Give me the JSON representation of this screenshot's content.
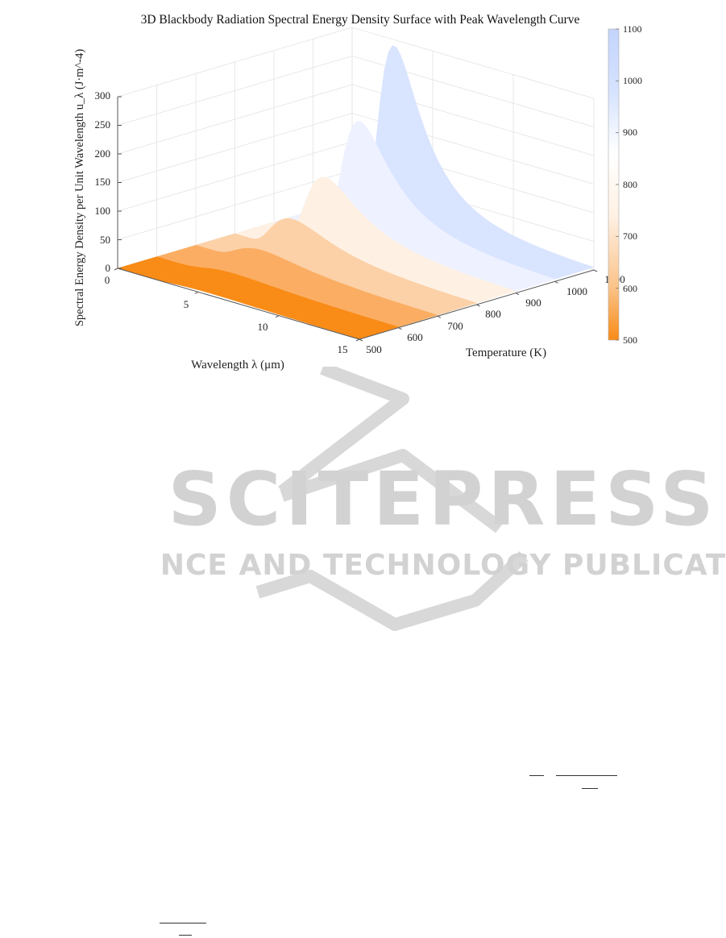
{
  "chart_data": {
    "type": "surface",
    "title": "3D Blackbody Radiation Spectral Energy Density Surface with Peak Wavelength Curve",
    "xlabel": "Wavelength  λ (μm)",
    "ylabel": "Temperature (K)",
    "zlabel": "Spectral Energy Density per Unit Wavelength  u_λ (J·m^-4)",
    "x_ticks": [
      "0",
      "5",
      "10",
      "15"
    ],
    "y_ticks": [
      "500",
      "600",
      "700",
      "800",
      "900",
      "1000",
      "1100"
    ],
    "z_ticks": [
      "0",
      "50",
      "100",
      "150",
      "200",
      "250",
      "300"
    ],
    "xlim": [
      0,
      15
    ],
    "ylim": [
      500,
      1100
    ],
    "zlim": [
      0,
      300
    ],
    "colorbar": {
      "ticks": [
        "500",
        "600",
        "700",
        "800",
        "900",
        "1000",
        "1100"
      ],
      "range": [
        500,
        1100
      ],
      "colors": [
        "#f98b17",
        "#fbc389",
        "#fef1e4",
        "#ffffff",
        "#d6e2ff",
        "#c3d4fd"
      ]
    },
    "temperatures": [
      500,
      600,
      700,
      800,
      900,
      1000,
      1100
    ],
    "peak_values": [
      4,
      10,
      25,
      55,
      105,
      180,
      290
    ],
    "peak_wavelengths": [
      5.8,
      4.8,
      4.1,
      3.6,
      3.2,
      2.9,
      2.6
    ],
    "grid": true
  },
  "watermark": {
    "line1": "SCITEPRESS",
    "line2": "SCIENCE AND TECHNOLOGY PUBLICATIONS"
  }
}
